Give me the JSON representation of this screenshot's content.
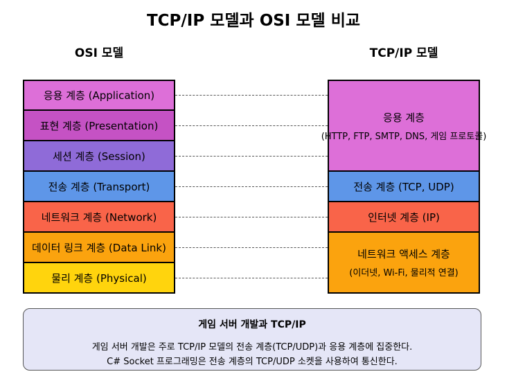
{
  "title": "TCP/IP 모델과 OSI 모델 비교",
  "osi": {
    "heading": "OSI 모델",
    "layers": [
      {
        "label": "응용 계층 (Application)",
        "color": "#dd6fd8"
      },
      {
        "label": "표현 계층 (Presentation)",
        "color": "#c552c4"
      },
      {
        "label": "세션 계층 (Session)",
        "color": "#8f6bd8"
      },
      {
        "label": "전송 계층 (Transport)",
        "color": "#5e96e8"
      },
      {
        "label": "네트워크 계층 (Network)",
        "color": "#f96449"
      },
      {
        "label": "데이터 링크 계층 (Data Link)",
        "color": "#fba30e"
      },
      {
        "label": "물리 계층 (Physical)",
        "color": "#ffd40d"
      }
    ]
  },
  "tcpip": {
    "heading": "TCP/IP 모델",
    "layers": [
      {
        "label": "응용 계층",
        "sublabel": "(HTTP, FTP, SMTP, DNS, 게임 프로토콜)",
        "color": "#dd6fd8"
      },
      {
        "label": "전송 계층 (TCP, UDP)",
        "sublabel": "",
        "color": "#5e96e8"
      },
      {
        "label": "인터넷 계층 (IP)",
        "sublabel": "",
        "color": "#f96449"
      },
      {
        "label": "네트워크 액세스 계층",
        "sublabel": "(이더넷, Wi-Fi, 물리적 연결)",
        "color": "#fba30e"
      }
    ]
  },
  "note": {
    "title": "게임 서버 개발과 TCP/IP",
    "line1": "게임 서버 개발은 주로 TCP/IP 모델의 전송 계층(TCP/UDP)과 응용 계층에 집중한다.",
    "line2": "C# Socket 프로그래밍은 전송 계층의 TCP/UDP 소켓을 사용하여 통신한다."
  }
}
